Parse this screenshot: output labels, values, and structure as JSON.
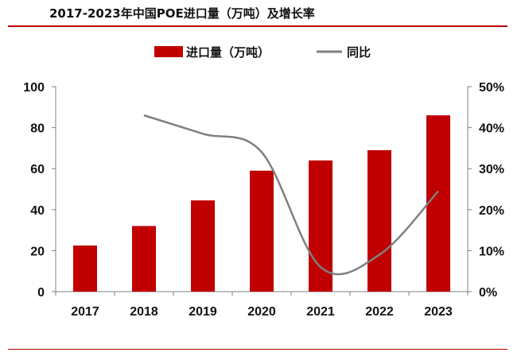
{
  "header": {
    "title": "2017-2023年中国POE进口量（万吨）及增长率"
  },
  "colors": {
    "bar": "#c00000",
    "line": "#7f7f7f",
    "accent": "#c00000"
  },
  "chart_data": {
    "type": "bar",
    "title": "2017-2023年中国POE进口量（万吨）及增长率",
    "categories": [
      "2017",
      "2018",
      "2019",
      "2020",
      "2021",
      "2022",
      "2023"
    ],
    "series": [
      {
        "name": "进口量（万吨）",
        "type": "bar",
        "axis": "left",
        "values": [
          22.5,
          32,
          44.5,
          59,
          64,
          69,
          86
        ]
      },
      {
        "name": "同比",
        "type": "line",
        "axis": "right",
        "unit": "%",
        "values": [
          null,
          43,
          38.5,
          34,
          6,
          9,
          24.5
        ]
      }
    ],
    "left_axis": {
      "ylim": [
        0,
        100
      ],
      "ticks": [
        "0",
        "20",
        "40",
        "60",
        "80",
        "100"
      ]
    },
    "right_axis": {
      "ylim": [
        0,
        50
      ],
      "ticks": [
        "0%",
        "10%",
        "20%",
        "30%",
        "40%",
        "50%"
      ]
    },
    "legend": {
      "position": "top-center",
      "entries": [
        "进口量（万吨）",
        "同比"
      ]
    },
    "grid": false
  }
}
